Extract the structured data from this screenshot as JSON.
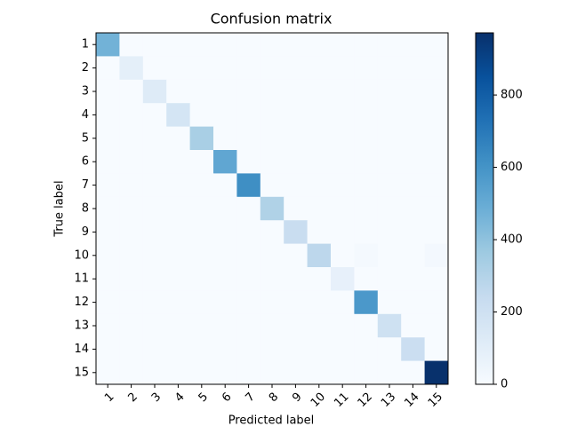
{
  "chart_data": {
    "type": "heatmap",
    "title": "Confusion matrix",
    "xlabel": "Predicted label",
    "ylabel": "True label",
    "x_categories": [
      "1",
      "2",
      "3",
      "4",
      "5",
      "6",
      "7",
      "8",
      "9",
      "10",
      "11",
      "12",
      "13",
      "14",
      "15"
    ],
    "y_categories": [
      "1",
      "2",
      "3",
      "4",
      "5",
      "6",
      "7",
      "8",
      "9",
      "10",
      "11",
      "12",
      "13",
      "14",
      "15"
    ],
    "values": [
      [
        470,
        0,
        0,
        0,
        0,
        0,
        0,
        0,
        0,
        0,
        0,
        0,
        0,
        0,
        0
      ],
      [
        0,
        90,
        0,
        0,
        0,
        0,
        0,
        0,
        0,
        0,
        0,
        0,
        0,
        0,
        0
      ],
      [
        0,
        0,
        120,
        0,
        0,
        0,
        0,
        0,
        0,
        0,
        0,
        0,
        0,
        0,
        0
      ],
      [
        0,
        0,
        0,
        170,
        0,
        0,
        0,
        0,
        0,
        0,
        0,
        0,
        0,
        0,
        0
      ],
      [
        0,
        0,
        0,
        0,
        330,
        0,
        0,
        0,
        0,
        0,
        0,
        0,
        0,
        0,
        0
      ],
      [
        0,
        0,
        0,
        0,
        0,
        520,
        0,
        0,
        0,
        0,
        0,
        0,
        0,
        0,
        0
      ],
      [
        0,
        0,
        0,
        0,
        0,
        0,
        620,
        0,
        0,
        0,
        0,
        0,
        0,
        0,
        0
      ],
      [
        0,
        0,
        0,
        0,
        0,
        0,
        0,
        310,
        0,
        0,
        0,
        0,
        0,
        0,
        0
      ],
      [
        0,
        0,
        0,
        0,
        0,
        0,
        0,
        0,
        230,
        0,
        0,
        0,
        0,
        0,
        0
      ],
      [
        0,
        0,
        0,
        0,
        0,
        0,
        0,
        0,
        0,
        270,
        0,
        15,
        0,
        0,
        20
      ],
      [
        0,
        0,
        0,
        0,
        0,
        0,
        0,
        0,
        0,
        0,
        80,
        0,
        0,
        0,
        0
      ],
      [
        0,
        0,
        0,
        0,
        0,
        0,
        0,
        0,
        0,
        0,
        0,
        580,
        0,
        0,
        0
      ],
      [
        0,
        0,
        0,
        0,
        0,
        0,
        0,
        0,
        0,
        0,
        0,
        0,
        200,
        0,
        0
      ],
      [
        0,
        0,
        0,
        0,
        0,
        0,
        0,
        0,
        0,
        0,
        0,
        0,
        0,
        220,
        0
      ],
      [
        0,
        0,
        0,
        0,
        0,
        0,
        0,
        0,
        0,
        0,
        0,
        0,
        0,
        0,
        970
      ]
    ],
    "colormap": "Blues",
    "clim": [
      0,
      972
    ],
    "cticks": [
      0,
      200,
      400,
      600,
      800
    ]
  }
}
